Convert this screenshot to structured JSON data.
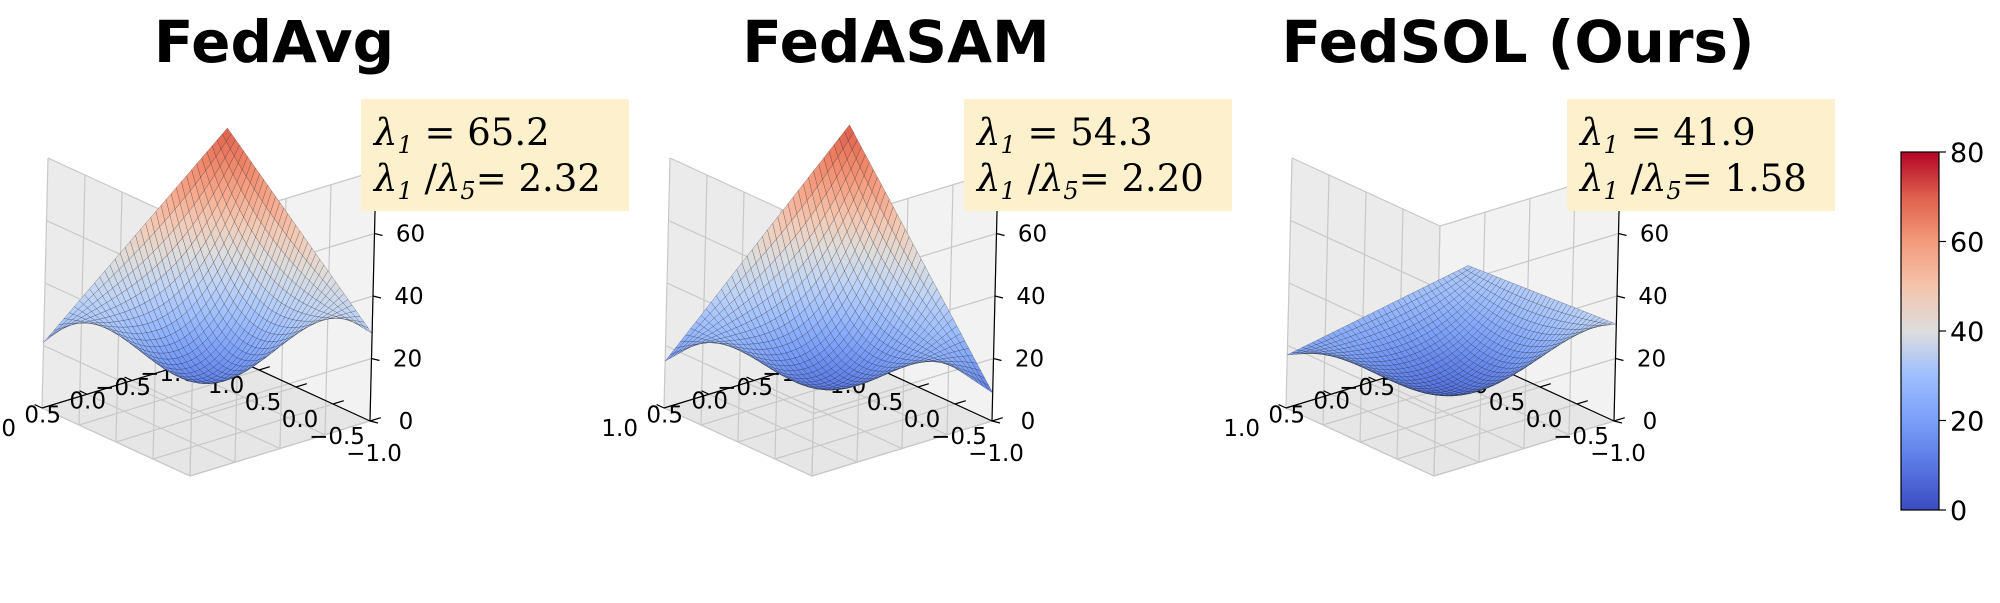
{
  "chart_data": [
    {
      "type": "surface",
      "title": "FedAvg",
      "annotation": {
        "lambda1_label": "λ1 = 65.2",
        "ratio_label": "λ1 /λ5= 2.32",
        "lambda1": 65.2,
        "ratio": 2.32
      },
      "z_ticks": [
        "80",
        "60",
        "40",
        "20",
        "0"
      ],
      "x_ticks": [
        "1.0",
        "0.5",
        "0.0",
        "−0.5",
        "−1.0"
      ],
      "y_ticks": [
        "1.0",
        "0.5",
        "0.0",
        "−0.5",
        "−1.0"
      ],
      "xlim": [
        -1,
        1
      ],
      "ylim": [
        -1,
        1
      ],
      "zlim": [
        0,
        80
      ],
      "surface": {
        "a": 15,
        "b": 13,
        "c": 10,
        "d": 17,
        "corners": [
          72,
          21,
          28,
          80
        ]
      }
    },
    {
      "type": "surface",
      "title": "FedASAM",
      "annotation": {
        "lambda1_label": "λ1 = 54.3",
        "ratio_label": "λ1 /λ5= 2.20",
        "lambda1": 54.3,
        "ratio": 2.2
      },
      "z_ticks": [
        "80",
        "60",
        "40",
        "20",
        "0"
      ],
      "x_ticks": [
        "1.0",
        "0.5",
        "0.0",
        "−0.5",
        "−1.0"
      ],
      "y_ticks": [
        "1.0",
        "0.5",
        "0.0",
        "−0.5",
        "−1.0"
      ],
      "xlim": [
        -1,
        1
      ],
      "ylim": [
        -1,
        1
      ],
      "zlim": [
        0,
        80
      ],
      "surface": {
        "a": 3,
        "b": 5,
        "c": 34,
        "d": 5,
        "corners": [
          73,
          15,
          9,
          64
        ]
      }
    },
    {
      "type": "surface",
      "title": "FedSOL (Ours)",
      "annotation": {
        "lambda1_label": "λ1 = 41.9",
        "ratio_label": "λ1 /λ5= 1.58",
        "lambda1": 41.9,
        "ratio": 1.58
      },
      "z_ticks": [
        "80",
        "60",
        "40",
        "20",
        "0"
      ],
      "x_ticks": [
        "1.0",
        "0.5",
        "0.0",
        "−0.5",
        "−1.0"
      ],
      "y_ticks": [
        "1.0",
        "0.5",
        "0.0",
        "−0.5",
        "−1.0"
      ],
      "xlim": [
        -1,
        1
      ],
      "ylim": [
        -1,
        1
      ],
      "zlim": [
        0,
        80
      ],
      "surface": {
        "a": 3,
        "b": 5,
        "c": 12,
        "d": 11,
        "corners": [
          28,
          17,
          31,
          42
        ]
      }
    }
  ],
  "colorbar": {
    "ticks": [
      "80",
      "60",
      "40",
      "20",
      "0"
    ],
    "min": 0,
    "max": 80,
    "colormap": "coolwarm"
  },
  "colors": {
    "box_fill": "#fdf0cc",
    "pane": "#f2f2f2",
    "grid": "#c8c8c8"
  }
}
